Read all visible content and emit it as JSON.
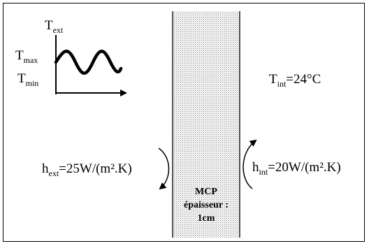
{
  "wall": {
    "label_line1": "MCP",
    "label_line2": "épaisseur :",
    "label_line3": "1cm"
  },
  "exterior": {
    "temp_symbol": "T",
    "temp_sub": "ext",
    "tmax_symbol": "T",
    "tmax_sub": "max",
    "tmin_symbol": "T",
    "tmin_sub": "min",
    "h_symbol": "h",
    "h_sub": "ext",
    "h_value": "=25W/(m².K)"
  },
  "interior": {
    "temp_symbol": "T",
    "temp_sub": "int",
    "temp_value": "=24°C",
    "h_symbol": "h",
    "h_sub": "int",
    "h_value": "=20W/(m².K)"
  }
}
